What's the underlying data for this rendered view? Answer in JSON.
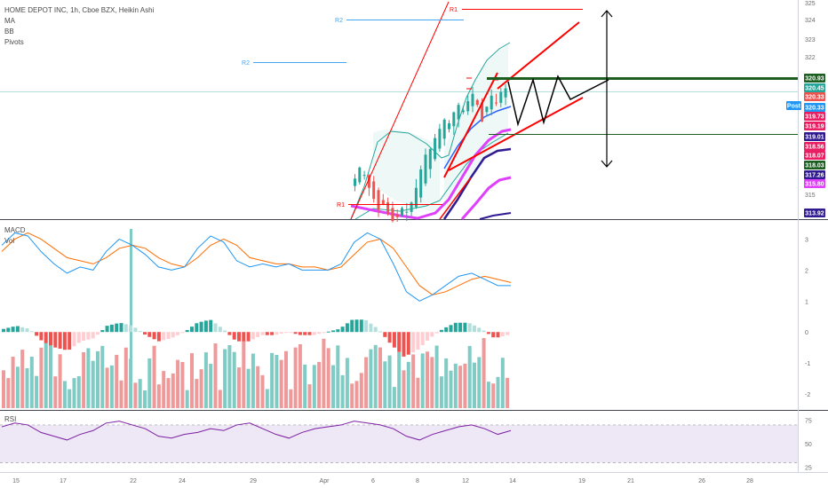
{
  "header": {
    "title": "HOME DEPOT INC, 1h, Cboe BZX, Heikin Ashi",
    "studies": [
      "MA",
      "BB",
      "Pivots"
    ]
  },
  "macd_pane": {
    "labels": [
      "MACD",
      "Vol"
    ]
  },
  "rsi_pane": {
    "label": "RSI"
  },
  "colors": {
    "up": "#26a69a",
    "down": "#ef5350",
    "bb": "#26a69a",
    "ma_pink": "#e040fb",
    "ma_blue": "#2962ff",
    "ma_navy": "#311b92",
    "draw_red": "#ff0000",
    "draw_green": "#1b5e20",
    "macd": "#2196f3",
    "signal": "#ff6d00",
    "rsi": "#7b1fa2",
    "rsi_band": "#ede7f6",
    "pivot_r": "#ff0000",
    "pivot_r2": "#42a5f5"
  },
  "chart_data": [
    {
      "type": "candlestick",
      "title": "HOME DEPOT INC, 1h, Cboe BZX, Heikin Ashi",
      "x_ticks": [
        "15",
        "17",
        "22",
        "24",
        "29",
        "Apr",
        "6",
        "8",
        "12",
        "14",
        "19",
        "21",
        "26",
        "28"
      ],
      "y_ticks": [
        "325",
        "324",
        "323",
        "322",
        "320",
        "319",
        "317",
        "316",
        "315"
      ],
      "price_tags": [
        {
          "text": "320.93",
          "color": "#1b5e20"
        },
        {
          "text": "320.45",
          "color": "#26a69a"
        },
        {
          "text": "320.33",
          "color": "#ef5350"
        },
        {
          "text": "Post",
          "color": "#2196f3"
        },
        {
          "text": "320.33",
          "color": "#2196f3"
        },
        {
          "text": "319.73",
          "color": "#e91e63"
        },
        {
          "text": "319.19",
          "color": "#e91e63"
        },
        {
          "text": "319.01",
          "color": "#311b92"
        },
        {
          "text": "318.56",
          "color": "#e91e63"
        },
        {
          "text": "318.07",
          "color": "#e91e63"
        },
        {
          "text": "318.03",
          "color": "#1b5e20"
        },
        {
          "text": "317.26",
          "color": "#311b92"
        },
        {
          "text": "315.80",
          "color": "#e040fb"
        },
        {
          "text": "313.92",
          "color": "#311b92"
        }
      ],
      "pivot_labels": [
        "R1",
        "R2",
        "R2",
        "R1"
      ],
      "candles_close": [
        315.7,
        316.3,
        315.9,
        315.2,
        314.6,
        314.0,
        314.3,
        313.8,
        313.4,
        313.6,
        314.1,
        313.9,
        314.4,
        315.2,
        316.2,
        317.0,
        317.3,
        317.9,
        318.4,
        318.9,
        318.7,
        319.3,
        319.7,
        319.4,
        319.9,
        320.3,
        319.7,
        318.8,
        319.6,
        320.2,
        319.8,
        320.4,
        320.6
      ],
      "ylim": [
        313.5,
        325.2
      ]
    },
    {
      "type": "line",
      "title": "MACD",
      "y_ticks": [
        "3",
        "2",
        "1",
        "0",
        "-1",
        "-2"
      ],
      "series": [
        {
          "name": "MACD",
          "values": [
            2.8,
            3.2,
            3.1,
            2.6,
            2.2,
            1.9,
            2.1,
            2.0,
            2.6,
            3.0,
            2.8,
            2.5,
            2.1,
            2.0,
            2.1,
            2.7,
            3.1,
            2.9,
            2.3,
            2.1,
            2.2,
            2.1,
            2.2,
            2.0,
            2.0,
            2.0,
            2.2,
            2.9,
            3.2,
            3.0,
            2.2,
            1.3,
            1.0,
            1.2,
            1.5,
            1.8,
            1.9,
            1.7,
            1.5,
            1.5
          ]
        },
        {
          "name": "Signal",
          "values": [
            2.6,
            3.0,
            3.2,
            3.0,
            2.7,
            2.4,
            2.3,
            2.2,
            2.4,
            2.7,
            2.8,
            2.7,
            2.4,
            2.2,
            2.1,
            2.4,
            2.8,
            3.0,
            2.8,
            2.4,
            2.3,
            2.2,
            2.2,
            2.1,
            2.1,
            2.0,
            2.1,
            2.5,
            2.9,
            3.0,
            2.7,
            2.1,
            1.5,
            1.2,
            1.3,
            1.5,
            1.7,
            1.8,
            1.7,
            1.6
          ]
        },
        {
          "name": "Histogram",
          "values": [
            0.1,
            0.2,
            0.1,
            -0.3,
            -0.5,
            -0.6,
            -0.3,
            -0.2,
            0.2,
            0.3,
            0.2,
            -0.1,
            -0.3,
            -0.2,
            0.0,
            0.3,
            0.4,
            0.1,
            -0.3,
            -0.3,
            -0.1,
            -0.1,
            0.0,
            -0.1,
            -0.1,
            0.0,
            0.1,
            0.4,
            0.4,
            0.1,
            -0.4,
            -0.8,
            -0.6,
            -0.2,
            0.1,
            0.3,
            0.3,
            0.1,
            -0.2,
            -0.1
          ]
        }
      ],
      "ylim": [
        -2.4,
        3.5
      ]
    },
    {
      "type": "line",
      "title": "RSI",
      "y_ticks": [
        "75",
        "50",
        "25"
      ],
      "series": [
        {
          "name": "RSI",
          "values": [
            68,
            72,
            70,
            62,
            58,
            54,
            60,
            64,
            72,
            74,
            70,
            66,
            58,
            56,
            60,
            62,
            66,
            64,
            70,
            72,
            66,
            60,
            56,
            62,
            66,
            68,
            70,
            74,
            72,
            70,
            66,
            58,
            54,
            60,
            64,
            68,
            70,
            66,
            60,
            64
          ]
        }
      ],
      "ylim": [
        20,
        85
      ]
    }
  ]
}
